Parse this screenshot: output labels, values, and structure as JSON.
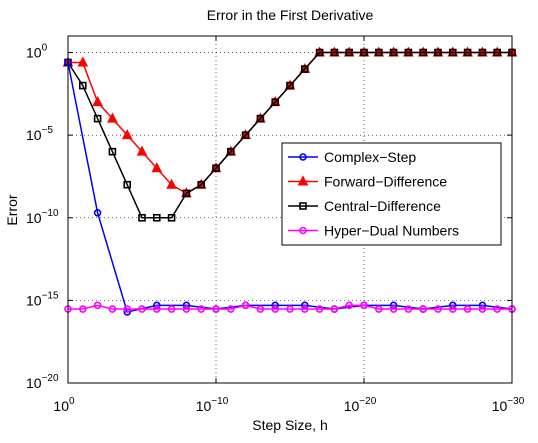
{
  "chart_data": {
    "type": "line",
    "title": "Error in the First Derivative",
    "xlabel": "Step Size, h",
    "ylabel": "Error",
    "x_scale": "log",
    "y_scale": "log",
    "x_reversed": true,
    "x_ticks": [
      {
        "value": 1,
        "base": "10",
        "exp": "0"
      },
      {
        "value": 1e-10,
        "base": "10",
        "exp": "−10"
      },
      {
        "value": 1e-20,
        "base": "10",
        "exp": "−20"
      },
      {
        "value": 1e-30,
        "base": "10",
        "exp": "−30"
      }
    ],
    "y_ticks": [
      {
        "value": 1,
        "base": "10",
        "exp": "0"
      },
      {
        "value": 1e-05,
        "base": "10",
        "exp": "−5"
      },
      {
        "value": 1e-10,
        "base": "10",
        "exp": "−10"
      },
      {
        "value": 1e-15,
        "base": "10",
        "exp": "−15"
      },
      {
        "value": 1e-20,
        "base": "10",
        "exp": "−20"
      }
    ],
    "xlim": [
      1,
      1e-30
    ],
    "ylim": [
      1e-20,
      10
    ],
    "grid": true,
    "legend_position": "middle-right",
    "series": [
      {
        "name": "Complex−Step",
        "color": "#0000ff",
        "marker": "circle",
        "x": [
          1,
          0.01,
          0.0001,
          1e-06,
          1e-08,
          1e-10,
          1e-12,
          1e-14,
          1e-16,
          1e-18,
          1e-20,
          1e-22,
          1e-24,
          1e-26,
          1e-28,
          1e-30
        ],
        "y": [
          0.25,
          2e-10,
          2e-16,
          5e-16,
          5e-16,
          3e-16,
          5e-16,
          5e-16,
          5e-16,
          3e-16,
          5e-16,
          5e-16,
          3e-16,
          5e-16,
          5e-16,
          3e-16
        ]
      },
      {
        "name": "Forward−Difference",
        "color": "#ff0000",
        "marker": "triangle",
        "x": [
          1,
          0.1,
          0.01,
          0.001,
          0.0001,
          1e-05,
          1e-06,
          1e-07,
          1e-08,
          1e-09,
          1e-10,
          1e-11,
          1e-12,
          1e-13,
          1e-14,
          1e-15,
          1e-16,
          1e-17,
          1e-18,
          1e-19,
          1e-20,
          1e-21,
          1e-22,
          1e-23,
          1e-24,
          1e-25,
          1e-26,
          1e-27,
          1e-28,
          1e-29,
          1e-30
        ],
        "y": [
          0.25,
          0.25,
          0.001,
          0.0001,
          1e-05,
          1e-06,
          1e-07,
          1e-08,
          3e-09,
          1e-08,
          1e-07,
          1e-06,
          1e-05,
          0.0001,
          0.001,
          0.01,
          0.1,
          1,
          1,
          1,
          1,
          1,
          1,
          1,
          1,
          1,
          1,
          1,
          1,
          1,
          1
        ]
      },
      {
        "name": "Central−Difference",
        "color": "#000000",
        "marker": "square",
        "x": [
          1,
          0.1,
          0.01,
          0.001,
          0.0001,
          1e-05,
          1e-06,
          1e-07,
          1e-08,
          1e-09,
          1e-10,
          1e-11,
          1e-12,
          1e-13,
          1e-14,
          1e-15,
          1e-16,
          1e-17,
          1e-18,
          1e-19,
          1e-20,
          1e-21,
          1e-22,
          1e-23,
          1e-24,
          1e-25,
          1e-26,
          1e-27,
          1e-28,
          1e-29,
          1e-30
        ],
        "y": [
          0.25,
          0.01,
          0.0001,
          1e-06,
          1e-08,
          1e-10,
          1e-10,
          1e-10,
          3e-09,
          1e-08,
          1e-07,
          1e-06,
          1e-05,
          0.0001,
          0.001,
          0.01,
          0.1,
          1,
          1,
          1,
          1,
          1,
          1,
          1,
          1,
          1,
          1,
          1,
          1,
          1,
          1
        ]
      },
      {
        "name": "Hyper−Dual Numbers",
        "color": "#ff00ff",
        "marker": "circle",
        "x": [
          1,
          0.1,
          0.01,
          0.001,
          0.0001,
          1e-05,
          1e-06,
          1e-07,
          1e-08,
          1e-09,
          1e-10,
          1e-11,
          1e-12,
          1e-13,
          1e-14,
          1e-15,
          1e-16,
          1e-17,
          1e-18,
          1e-19,
          1e-20,
          1e-21,
          1e-22,
          1e-23,
          1e-24,
          1e-25,
          1e-26,
          1e-27,
          1e-28,
          1e-29,
          1e-30
        ],
        "y": [
          3e-16,
          3e-16,
          5e-16,
          3e-16,
          3e-16,
          3e-16,
          3e-16,
          3e-16,
          3e-16,
          3e-16,
          3e-16,
          3e-16,
          5e-16,
          3e-16,
          3e-16,
          3e-16,
          3e-16,
          3e-16,
          3e-16,
          5e-16,
          5e-16,
          3e-16,
          3e-16,
          3e-16,
          3e-16,
          3e-16,
          3e-16,
          3e-16,
          3e-16,
          3e-16,
          3e-16
        ]
      }
    ]
  }
}
